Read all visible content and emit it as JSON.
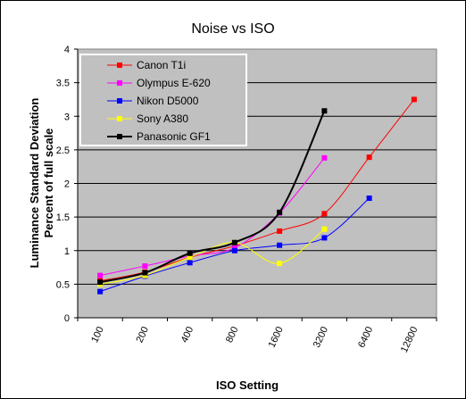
{
  "chart_data": {
    "type": "line",
    "title": "Noise vs ISO",
    "xlabel": "ISO Setting",
    "ylabel": [
      "Luminance Standard Deviation",
      "Percent of full scale"
    ],
    "categories": [
      "100",
      "200",
      "400",
      "800",
      "1600",
      "3200",
      "6400",
      "12800"
    ],
    "ylim": [
      0,
      4
    ],
    "yticks": [
      "0",
      "0.5",
      "1",
      "1.5",
      "2",
      "2.5",
      "3",
      "3.5",
      "4"
    ],
    "grid": true,
    "legend_position": "top-left",
    "plot_background": "#c0c0c0",
    "series": [
      {
        "name": "Canon T1i",
        "color": "#ff0000",
        "values": [
          0.55,
          0.68,
          0.9,
          1.07,
          1.29,
          1.55,
          2.39,
          3.25
        ]
      },
      {
        "name": "Olympus E-620",
        "color": "#ff00ff",
        "values": [
          0.63,
          0.77,
          0.92,
          1.04,
          1.56,
          2.38,
          null,
          null
        ]
      },
      {
        "name": "Nikon D5000",
        "color": "#0000ff",
        "values": [
          0.39,
          0.62,
          0.82,
          1.0,
          1.08,
          1.19,
          1.78,
          null
        ]
      },
      {
        "name": "Sony A380",
        "color": "#ffff00",
        "values": [
          0.5,
          0.63,
          0.9,
          1.12,
          0.81,
          1.32,
          null,
          null
        ]
      },
      {
        "name": "Panasonic GF1",
        "color": "#000000",
        "values": [
          0.53,
          0.67,
          0.96,
          1.12,
          1.57,
          3.08,
          null,
          null
        ]
      }
    ]
  }
}
